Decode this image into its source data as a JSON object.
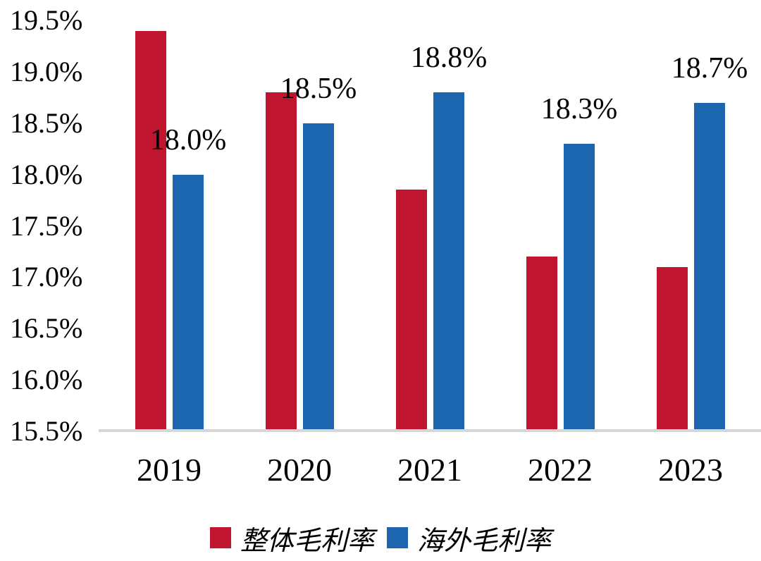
{
  "chart_data": {
    "type": "bar",
    "title": "",
    "xlabel": "",
    "ylabel": "",
    "categories": [
      "2019",
      "2020",
      "2021",
      "2022",
      "2023"
    ],
    "series": [
      {
        "name": "整体毛利率",
        "color": "#c0152f",
        "values": [
          19.4,
          18.8,
          17.85,
          17.2,
          17.1
        ],
        "labels": [
          "",
          "",
          "",
          "",
          ""
        ]
      },
      {
        "name": "海外毛利率",
        "color": "#1b66ae",
        "values": [
          18.0,
          18.5,
          18.8,
          18.3,
          18.7
        ],
        "labels": [
          "18.0%",
          "18.5%",
          "18.8%",
          "18.3%",
          "18.7%"
        ]
      }
    ],
    "ylim": [
      15.5,
      19.5
    ],
    "ytick_step": 0.5,
    "yticks": [
      "19.5%",
      "19.0%",
      "18.5%",
      "18.0%",
      "17.5%",
      "17.0%",
      "16.5%",
      "16.0%",
      "15.5%"
    ],
    "grid": false,
    "legend_position": "bottom-center",
    "axis_line_color": "#d6d6d6",
    "text_color": "#000000",
    "background_color": "#ffffff"
  },
  "legend": {
    "items": [
      {
        "label": "整体毛利率",
        "color": "#c0152f"
      },
      {
        "label": "海外毛利率",
        "color": "#1b66ae"
      }
    ]
  }
}
